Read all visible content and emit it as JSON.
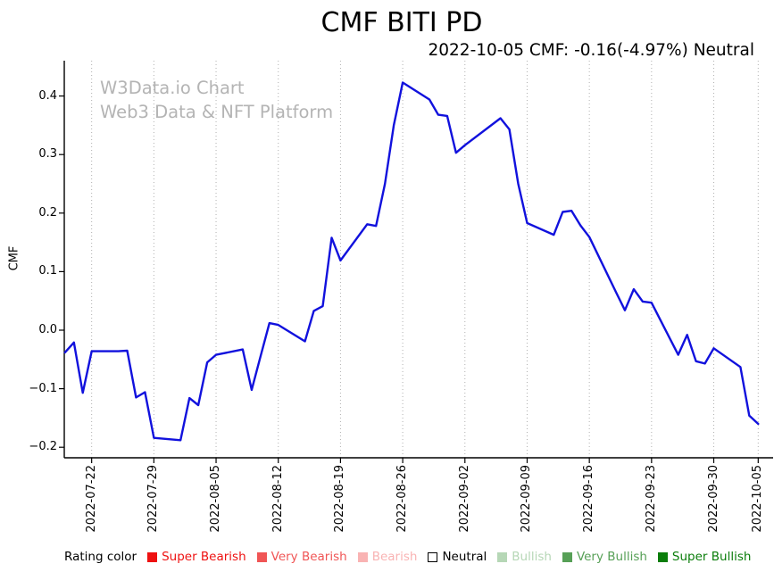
{
  "title": "CMF BITI PD",
  "subtitle": "2022-10-05 CMF: -0.16(-4.97%) Neutral",
  "watermark": {
    "line1": "W3Data.io Chart",
    "line2": "Web3 Data & NFT Platform"
  },
  "chart_data": {
    "type": "line",
    "title": "CMF BITI PD",
    "xlabel": "",
    "ylabel": "CMF",
    "ylim": [
      -0.22,
      0.46
    ],
    "grid": "vertical dotted gridlines at x ticks, no horizontal grid",
    "legend_position": "bottom",
    "line_color": "#1111dd",
    "y_ticks": [
      0.4,
      0.3,
      0.2,
      0.1,
      0.0,
      -0.1,
      -0.2
    ],
    "y_tick_labels": [
      "0.4",
      "0.3",
      "0.2",
      "0.1",
      "0.0",
      "−0.1",
      "−0.2"
    ],
    "x_tick_labels": [
      "2022-07-22",
      "2022-07-29",
      "2022-08-05",
      "2022-08-12",
      "2022-08-19",
      "2022-08-26",
      "2022-09-02",
      "2022-09-09",
      "2022-09-16",
      "2022-09-23",
      "2022-09-30",
      "2022-10-05"
    ],
    "series": [
      {
        "name": "CMF",
        "x": [
          "2022-07-19",
          "2022-07-20",
          "2022-07-21",
          "2022-07-22",
          "2022-07-25",
          "2022-07-26",
          "2022-07-27",
          "2022-07-28",
          "2022-07-29",
          "2022-08-01",
          "2022-08-02",
          "2022-08-03",
          "2022-08-04",
          "2022-08-05",
          "2022-08-08",
          "2022-08-09",
          "2022-08-10",
          "2022-08-11",
          "2022-08-12",
          "2022-08-15",
          "2022-08-16",
          "2022-08-17",
          "2022-08-18",
          "2022-08-19",
          "2022-08-22",
          "2022-08-23",
          "2022-08-24",
          "2022-08-25",
          "2022-08-26",
          "2022-08-29",
          "2022-08-30",
          "2022-08-31",
          "2022-09-01",
          "2022-09-02",
          "2022-09-06",
          "2022-09-07",
          "2022-09-08",
          "2022-09-09",
          "2022-09-12",
          "2022-09-13",
          "2022-09-14",
          "2022-09-15",
          "2022-09-16",
          "2022-09-19",
          "2022-09-20",
          "2022-09-21",
          "2022-09-22",
          "2022-09-23",
          "2022-09-26",
          "2022-09-27",
          "2022-09-28",
          "2022-09-29",
          "2022-09-30",
          "2022-10-03",
          "2022-10-04",
          "2022-10-05"
        ],
        "y": [
          -0.038,
          -0.021,
          -0.107,
          -0.036,
          -0.036,
          -0.035,
          -0.115,
          -0.106,
          -0.184,
          -0.188,
          -0.116,
          -0.128,
          -0.055,
          -0.042,
          -0.033,
          -0.102,
          -0.045,
          0.012,
          0.009,
          -0.019,
          0.033,
          0.041,
          0.158,
          0.119,
          0.181,
          0.178,
          0.25,
          0.35,
          0.423,
          0.394,
          0.368,
          0.366,
          0.303,
          0.316,
          0.362,
          0.343,
          0.25,
          0.183,
          0.163,
          0.202,
          0.204,
          0.179,
          0.159,
          0.065,
          0.034,
          0.07,
          0.049,
          0.047,
          -0.042,
          -0.008,
          -0.053,
          -0.057,
          -0.031,
          -0.063,
          -0.146,
          -0.16
        ]
      }
    ]
  },
  "legend": {
    "caption": "Rating color",
    "items": [
      {
        "label": "Super Bearish",
        "color": "#ee1111",
        "swatch": "#ee1111",
        "swatch_border": "none"
      },
      {
        "label": "Very Bearish",
        "color": "#f05555",
        "swatch": "#f05555",
        "swatch_border": "none"
      },
      {
        "label": "Bearish",
        "color": "#f9b3b3",
        "swatch": "#f9b3b3",
        "swatch_border": "none"
      },
      {
        "label": "Neutral",
        "color": "#000000",
        "swatch": "#ffffff",
        "swatch_border": "1px solid #000000"
      },
      {
        "label": "Bullish",
        "color": "#b6d7b6",
        "swatch": "#b6d7b6",
        "swatch_border": "none"
      },
      {
        "label": "Very Bullish",
        "color": "#57a057",
        "swatch": "#57a057",
        "swatch_border": "none"
      },
      {
        "label": "Super Bullish",
        "color": "#0a7d0a",
        "swatch": "#0a7d0a",
        "swatch_border": "none"
      }
    ]
  }
}
